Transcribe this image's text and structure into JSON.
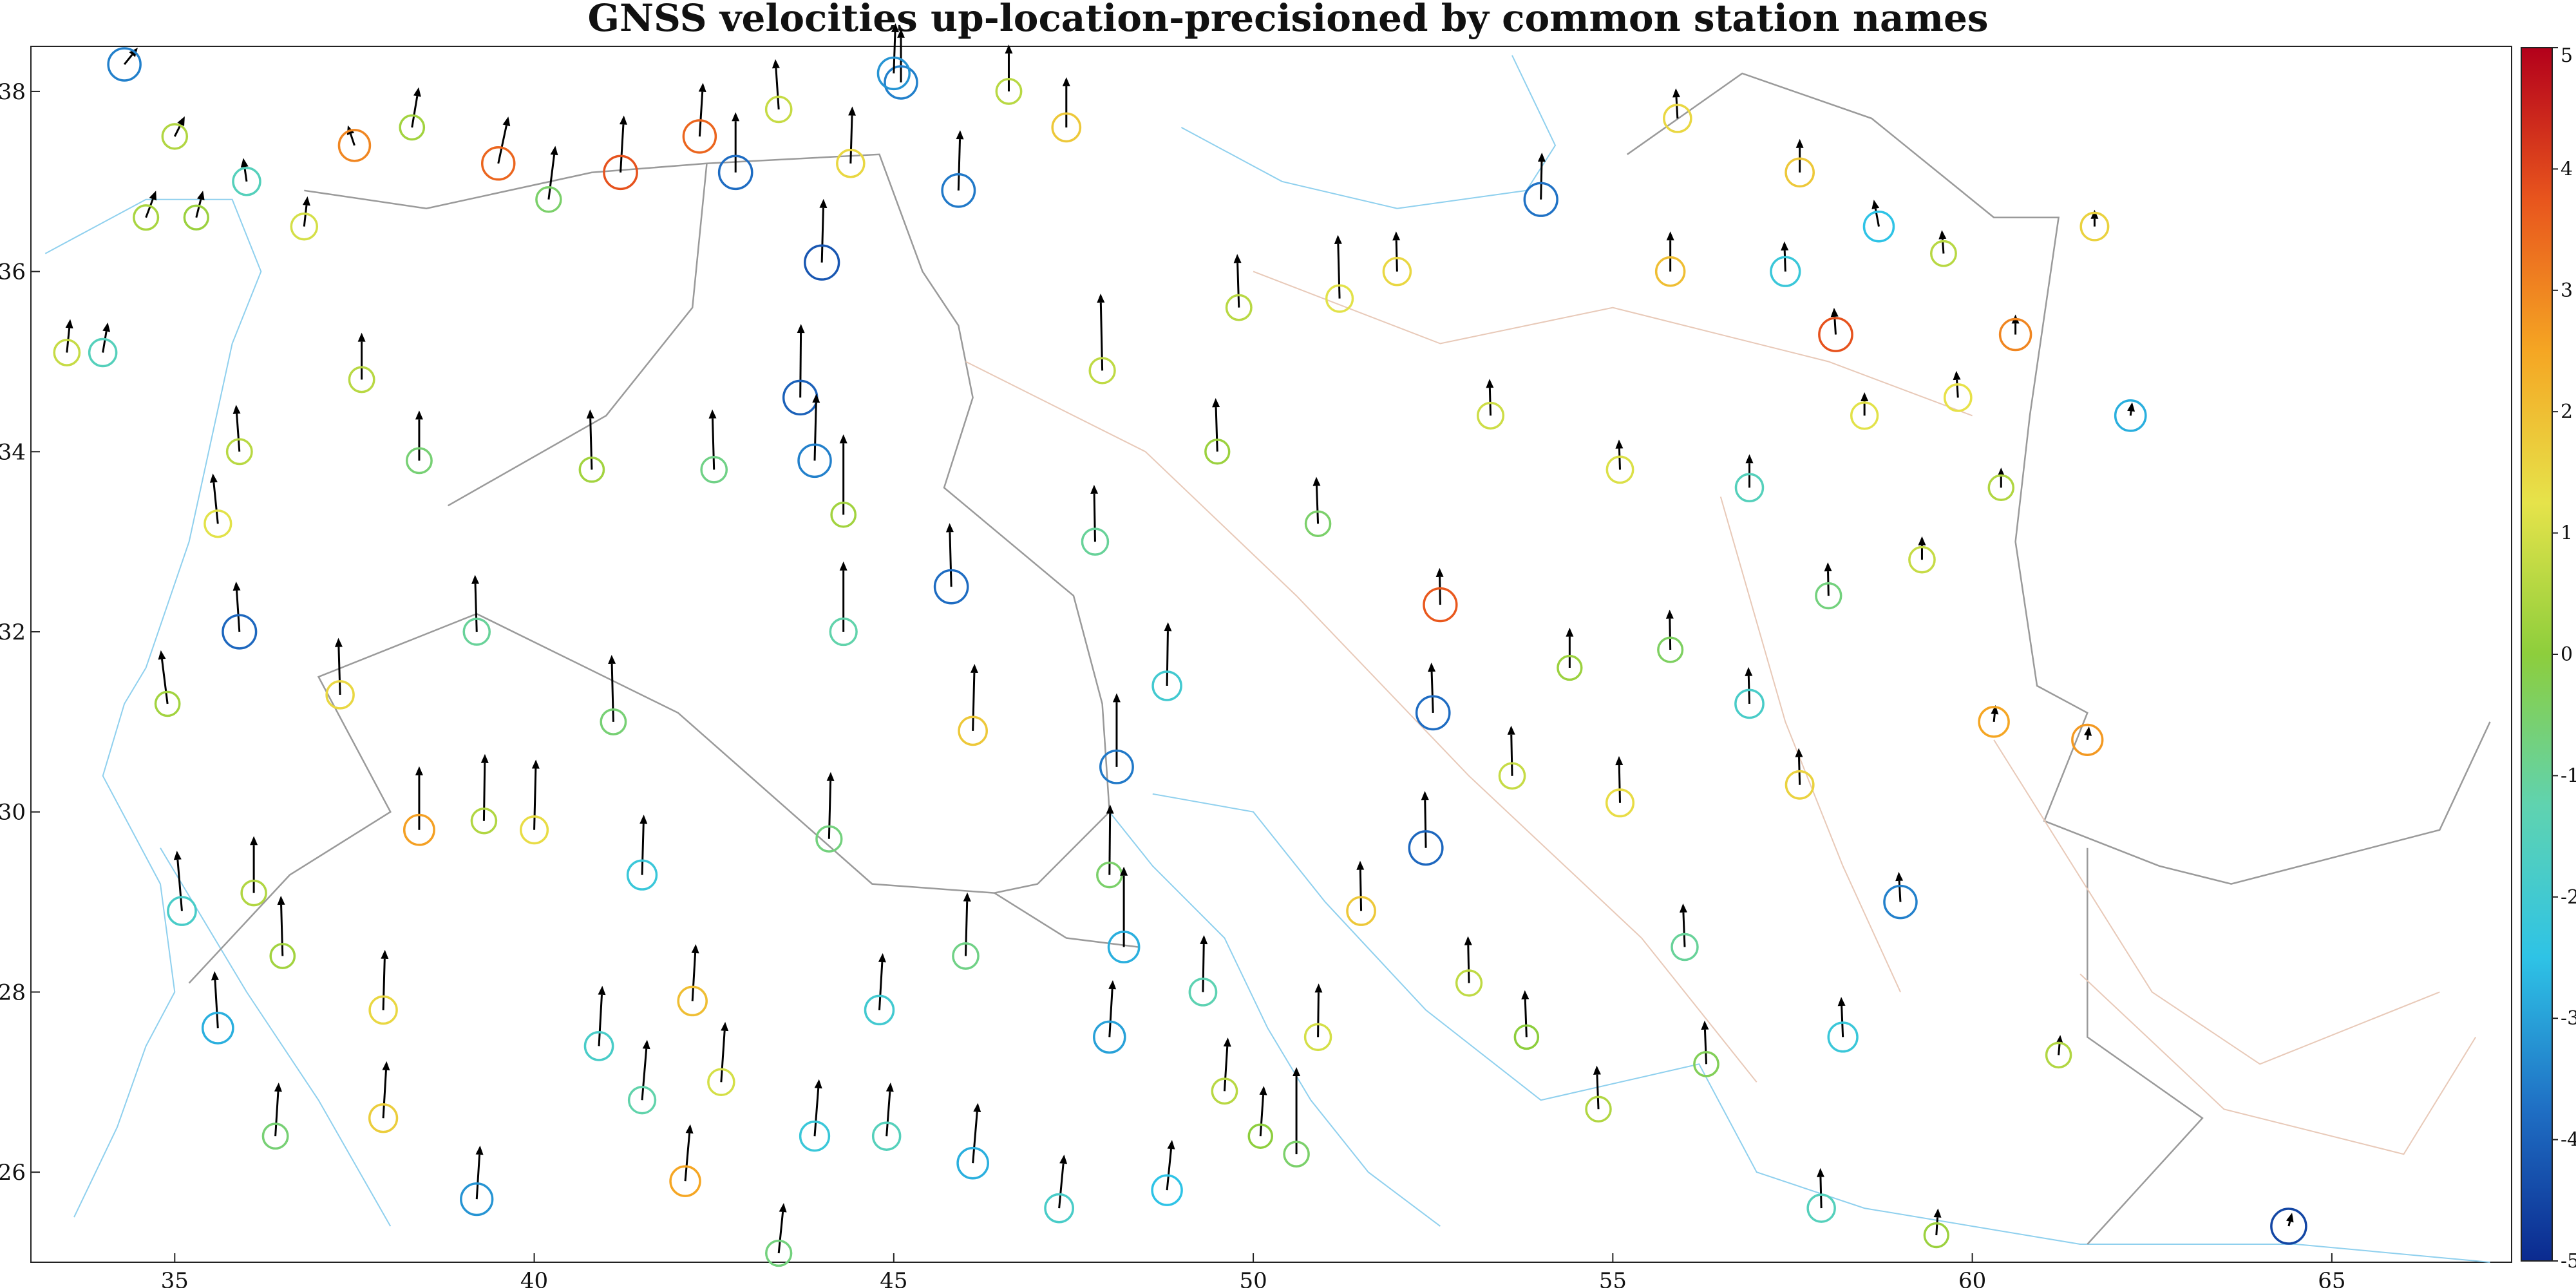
{
  "chart_data": {
    "type": "scatter",
    "title": "GNSS velocities up-location-precisioned by common station names",
    "xlabel": "",
    "ylabel": "",
    "xlim": [
      33.0,
      67.5
    ],
    "ylim": [
      25.0,
      38.5
    ],
    "x_ticks": [
      "35",
      "40",
      "45",
      "50",
      "55",
      "60",
      "65"
    ],
    "y_ticks": [
      "26",
      "28",
      "30",
      "32",
      "34",
      "36",
      "38"
    ],
    "grid": false,
    "legend": "none",
    "colorbar": {
      "position": "right",
      "limits": [
        -5,
        5
      ],
      "ticks": [
        "5",
        "4",
        "3",
        "2",
        "1",
        "0",
        "-1",
        "-2",
        "-3",
        "-4",
        "-5"
      ],
      "colormap": [
        "#0b2a8f",
        "#1f6fc4",
        "#2ec3e6",
        "#5fd3b0",
        "#8dce3c",
        "#e6e34a",
        "#f5a623",
        "#e8551d",
        "#b3001b"
      ]
    },
    "colors": {
      "arrow": "#000000",
      "coast": "#8fd0ee",
      "border": "#9a9a9a",
      "fault": "#e8c9b8"
    },
    "stations": [
      {
        "lon": 34.3,
        "lat": 38.3,
        "ve": 4.0,
        "vn": 5.0,
        "vu": -3.5
      },
      {
        "lon": 35.0,
        "lat": 37.5,
        "ve": 3.0,
        "vn": 6.0,
        "vu": 0.5
      },
      {
        "lon": 35.3,
        "lat": 36.6,
        "ve": 2.0,
        "vn": 8.0,
        "vu": 0.2
      },
      {
        "lon": 36.0,
        "lat": 37.0,
        "ve": -1.0,
        "vn": 7.0,
        "vu": -1.5
      },
      {
        "lon": 36.8,
        "lat": 36.5,
        "ve": 1.0,
        "vn": 9.0,
        "vu": 1.0
      },
      {
        "lon": 37.5,
        "lat": 37.4,
        "ve": -2.0,
        "vn": 6.0,
        "vu": 3.0
      },
      {
        "lon": 38.3,
        "lat": 37.6,
        "ve": 2.0,
        "vn": 12.0,
        "vu": 0.3
      },
      {
        "lon": 39.5,
        "lat": 37.2,
        "ve": 3.0,
        "vn": 14.0,
        "vu": 3.5
      },
      {
        "lon": 40.2,
        "lat": 36.8,
        "ve": 2.0,
        "vn": 16.0,
        "vu": -0.5
      },
      {
        "lon": 41.2,
        "lat": 37.1,
        "ve": 1.0,
        "vn": 17.0,
        "vu": 3.8
      },
      {
        "lon": 42.3,
        "lat": 37.5,
        "ve": 1.0,
        "vn": 16.0,
        "vu": 3.5
      },
      {
        "lon": 42.8,
        "lat": 37.1,
        "ve": 0.0,
        "vn": 18.0,
        "vu": -3.8
      },
      {
        "lon": 43.4,
        "lat": 37.8,
        "ve": -1.0,
        "vn": 15.0,
        "vu": 0.8
      },
      {
        "lon": 44.4,
        "lat": 37.2,
        "ve": 0.5,
        "vn": 17.0,
        "vu": 1.5
      },
      {
        "lon": 45.1,
        "lat": 38.1,
        "ve": 0.0,
        "vn": 16.0,
        "vu": -3.5
      },
      {
        "lon": 45.9,
        "lat": 36.9,
        "ve": 0.5,
        "vn": 18.0,
        "vu": -3.6
      },
      {
        "lon": 46.6,
        "lat": 38.0,
        "ve": 0.0,
        "vn": 14.0,
        "vu": 0.6
      },
      {
        "lon": 47.4,
        "lat": 37.6,
        "ve": 0.0,
        "vn": 15.0,
        "vu": 1.8
      },
      {
        "lon": 44.0,
        "lat": 36.1,
        "ve": 0.5,
        "vn": 19.0,
        "vu": -4.2
      },
      {
        "lon": 43.7,
        "lat": 34.6,
        "ve": 0.2,
        "vn": 22.0,
        "vu": -4.0
      },
      {
        "lon": 43.9,
        "lat": 33.9,
        "ve": 0.5,
        "vn": 20.0,
        "vu": -3.5
      },
      {
        "lon": 44.3,
        "lat": 33.3,
        "ve": 0.0,
        "vn": 24.0,
        "vu": 0.3
      },
      {
        "lon": 42.5,
        "lat": 33.8,
        "ve": -0.5,
        "vn": 18.0,
        "vu": -0.8
      },
      {
        "lon": 45.8,
        "lat": 32.5,
        "ve": -0.5,
        "vn": 19.0,
        "vu": -3.8
      },
      {
        "lon": 44.3,
        "lat": 32.0,
        "ve": 0.0,
        "vn": 21.0,
        "vu": -1.2
      },
      {
        "lon": 47.9,
        "lat": 34.9,
        "ve": -0.5,
        "vn": 23.0,
        "vu": 0.7
      },
      {
        "lon": 51.2,
        "lat": 35.7,
        "ve": -0.5,
        "vn": 19.0,
        "vu": 1.2
      },
      {
        "lon": 54.0,
        "lat": 36.8,
        "ve": 0.3,
        "vn": 14.0,
        "vu": -3.7
      },
      {
        "lon": 55.9,
        "lat": 37.7,
        "ve": -0.5,
        "vn": 9.0,
        "vu": 1.5
      },
      {
        "lon": 57.6,
        "lat": 37.1,
        "ve": 0.0,
        "vn": 10.0,
        "vu": 1.8
      },
      {
        "lon": 58.7,
        "lat": 36.5,
        "ve": -1.5,
        "vn": 8.0,
        "vu": -2.5
      },
      {
        "lon": 59.6,
        "lat": 36.2,
        "ve": -0.5,
        "vn": 7.0,
        "vu": 0.6
      },
      {
        "lon": 60.6,
        "lat": 35.3,
        "ve": 0.0,
        "vn": 6.0,
        "vu": 3.0
      },
      {
        "lon": 58.1,
        "lat": 35.3,
        "ve": -0.5,
        "vn": 8.0,
        "vu": 3.8
      },
      {
        "lon": 58.5,
        "lat": 34.4,
        "ve": 0.0,
        "vn": 7.0,
        "vu": 1.2
      },
      {
        "lon": 59.8,
        "lat": 34.6,
        "ve": -0.5,
        "vn": 8.0,
        "vu": 1.3
      },
      {
        "lon": 55.1,
        "lat": 33.8,
        "ve": -0.3,
        "vn": 9.0,
        "vu": 1.1
      },
      {
        "lon": 56.9,
        "lat": 33.6,
        "ve": 0.0,
        "vn": 10.0,
        "vu": -1.5
      },
      {
        "lon": 52.6,
        "lat": 32.3,
        "ve": -0.2,
        "vn": 11.0,
        "vu": 3.7
      },
      {
        "lon": 54.4,
        "lat": 31.6,
        "ve": 0.0,
        "vn": 12.0,
        "vu": 0.2
      },
      {
        "lon": 56.9,
        "lat": 31.2,
        "ve": -0.3,
        "vn": 11.0,
        "vu": -1.8
      },
      {
        "lon": 52.5,
        "lat": 31.1,
        "ve": -0.5,
        "vn": 15.0,
        "vu": -3.8
      },
      {
        "lon": 48.1,
        "lat": 30.5,
        "ve": 0.0,
        "vn": 22.0,
        "vu": -3.6
      },
      {
        "lon": 48.0,
        "lat": 29.3,
        "ve": 0.2,
        "vn": 21.0,
        "vu": -0.5
      },
      {
        "lon": 48.2,
        "lat": 28.5,
        "ve": 0.0,
        "vn": 24.0,
        "vu": -2.8
      },
      {
        "lon": 50.6,
        "lat": 26.2,
        "ve": 0.0,
        "vn": 26.0,
        "vu": -0.5
      },
      {
        "lon": 52.4,
        "lat": 29.6,
        "ve": -0.3,
        "vn": 17.0,
        "vu": -3.9
      },
      {
        "lon": 55.1,
        "lat": 30.1,
        "ve": -0.3,
        "vn": 14.0,
        "vu": 1.4
      },
      {
        "lon": 57.9,
        "lat": 25.6,
        "ve": -0.3,
        "vn": 12.0,
        "vu": -1.5
      },
      {
        "lon": 60.3,
        "lat": 31.0,
        "ve": 0.5,
        "vn": 5.0,
        "vu": 2.5
      },
      {
        "lon": 61.6,
        "lat": 30.8,
        "ve": 0.5,
        "vn": 4.0,
        "vu": 2.7
      },
      {
        "lon": 61.2,
        "lat": 27.3,
        "ve": 0.5,
        "vn": 6.0,
        "vu": 0.5
      },
      {
        "lon": 64.4,
        "lat": 25.4,
        "ve": 1.0,
        "vn": 4.0,
        "vu": -4.5
      },
      {
        "lon": 38.4,
        "lat": 29.8,
        "ve": 0.0,
        "vn": 19.0,
        "vu": 2.6
      },
      {
        "lon": 39.3,
        "lat": 29.9,
        "ve": 0.3,
        "vn": 20.0,
        "vu": 0.5
      },
      {
        "lon": 40.0,
        "lat": 29.8,
        "ve": 0.5,
        "vn": 21.0,
        "vu": 1.4
      },
      {
        "lon": 41.1,
        "lat": 31.0,
        "ve": -0.5,
        "vn": 20.0,
        "vu": -0.6
      },
      {
        "lon": 37.9,
        "lat": 27.8,
        "ve": 0.5,
        "vn": 18.0,
        "vu": 1.5
      },
      {
        "lon": 37.9,
        "lat": 26.6,
        "ve": 1.0,
        "vn": 17.0,
        "vu": 1.7
      },
      {
        "lon": 39.2,
        "lat": 25.7,
        "ve": 1.0,
        "vn": 16.0,
        "vu": -3.2
      },
      {
        "lon": 41.5,
        "lat": 26.8,
        "ve": 1.5,
        "vn": 18.0,
        "vu": -1.2
      },
      {
        "lon": 42.1,
        "lat": 25.9,
        "ve": 1.5,
        "vn": 17.0,
        "vu": 2.5
      },
      {
        "lon": 43.4,
        "lat": 25.1,
        "ve": 1.5,
        "vn": 15.0,
        "vu": -0.7
      },
      {
        "lon": 44.8,
        "lat": 27.8,
        "ve": 1.0,
        "vn": 17.0,
        "vu": -2.0
      },
      {
        "lon": 46.1,
        "lat": 26.1,
        "ve": 1.5,
        "vn": 18.0,
        "vu": -2.8
      },
      {
        "lon": 47.3,
        "lat": 25.6,
        "ve": 1.5,
        "vn": 16.0,
        "vu": -1.8
      },
      {
        "lon": 48.8,
        "lat": 25.8,
        "ve": 1.5,
        "vn": 15.0,
        "vu": -2.5
      },
      {
        "lon": 36.4,
        "lat": 26.4,
        "ve": 1.0,
        "vn": 16.0,
        "vu": -0.6
      },
      {
        "lon": 36.5,
        "lat": 28.4,
        "ve": -0.5,
        "vn": 18.0,
        "vu": 0.3
      },
      {
        "lon": 35.6,
        "lat": 27.6,
        "ve": -1.0,
        "vn": 17.0,
        "vu": -2.8
      },
      {
        "lon": 35.1,
        "lat": 28.9,
        "ve": -1.5,
        "vn": 18.0,
        "vu": -1.8
      },
      {
        "lon": 36.1,
        "lat": 29.1,
        "ve": 0.0,
        "vn": 17.0,
        "vu": 0.5
      },
      {
        "lon": 34.9,
        "lat": 31.2,
        "ve": -2.0,
        "vn": 16.0,
        "vu": 0.3
      },
      {
        "lon": 35.9,
        "lat": 32.0,
        "ve": -1.0,
        "vn": 15.0,
        "vu": -3.9
      },
      {
        "lon": 33.5,
        "lat": 35.1,
        "ve": 1.0,
        "vn": 10.0,
        "vu": 0.8
      },
      {
        "lon": 34.0,
        "lat": 35.1,
        "ve": 1.5,
        "vn": 9.0,
        "vu": -1.5
      },
      {
        "lon": 34.6,
        "lat": 36.6,
        "ve": 3.0,
        "vn": 8.0,
        "vu": 0.4
      },
      {
        "lon": 35.6,
        "lat": 33.2,
        "ve": -1.5,
        "vn": 15.0,
        "vu": 1.2
      },
      {
        "lon": 35.9,
        "lat": 34.0,
        "ve": -1.0,
        "vn": 14.0,
        "vu": 0.6
      },
      {
        "lon": 45.0,
        "lat": 38.2,
        "ve": 0.5,
        "vn": 15.0,
        "vu": -3.2
      },
      {
        "lon": 46.0,
        "lat": 28.4,
        "ve": 0.5,
        "vn": 19.0,
        "vu": -0.8
      },
      {
        "lon": 48.0,
        "lat": 27.5,
        "ve": 1.0,
        "vn": 17.0,
        "vu": -3.0
      },
      {
        "lon": 49.6,
        "lat": 26.9,
        "ve": 1.0,
        "vn": 16.0,
        "vu": 0.6
      },
      {
        "lon": 50.1,
        "lat": 26.4,
        "ve": 1.0,
        "vn": 15.0,
        "vu": 0.0
      },
      {
        "lon": 44.9,
        "lat": 26.4,
        "ve": 1.2,
        "vn": 16.0,
        "vu": -1.5
      },
      {
        "lon": 43.9,
        "lat": 26.4,
        "ve": 1.3,
        "vn": 17.0,
        "vu": -2.2
      },
      {
        "lon": 42.6,
        "lat": 27.0,
        "ve": 1.2,
        "vn": 18.0,
        "vu": 1.0
      },
      {
        "lon": 42.2,
        "lat": 27.9,
        "ve": 1.0,
        "vn": 17.0,
        "vu": 2.0
      },
      {
        "lon": 40.9,
        "lat": 27.4,
        "ve": 1.0,
        "vn": 18.0,
        "vu": -1.8
      },
      {
        "lon": 44.1,
        "lat": 29.7,
        "ve": 0.5,
        "vn": 20.0,
        "vu": -0.7
      },
      {
        "lon": 41.5,
        "lat": 29.3,
        "ve": 0.5,
        "vn": 18.0,
        "vu": -2.2
      },
      {
        "lon": 46.1,
        "lat": 30.9,
        "ve": 0.5,
        "vn": 20.0,
        "vu": 1.8
      },
      {
        "lon": 48.8,
        "lat": 31.4,
        "ve": 0.3,
        "vn": 19.0,
        "vu": -2.0
      },
      {
        "lon": 51.5,
        "lat": 28.9,
        "ve": -0.3,
        "vn": 15.0,
        "vu": 1.8
      },
      {
        "lon": 56.0,
        "lat": 28.5,
        "ve": -0.5,
        "vn": 13.0,
        "vu": -1.0
      },
      {
        "lon": 58.2,
        "lat": 27.5,
        "ve": -0.5,
        "vn": 12.0,
        "vu": -2.2
      },
      {
        "lon": 59.0,
        "lat": 29.0,
        "ve": -0.5,
        "vn": 9.0,
        "vu": -3.5
      },
      {
        "lon": 60.4,
        "lat": 33.6,
        "ve": 0.0,
        "vn": 6.0,
        "vu": 0.5
      },
      {
        "lon": 59.3,
        "lat": 32.8,
        "ve": 0.0,
        "vn": 7.0,
        "vu": 0.8
      },
      {
        "lon": 55.8,
        "lat": 36.0,
        "ve": 0.0,
        "vn": 12.0,
        "vu": 2.0
      },
      {
        "lon": 61.7,
        "lat": 36.5,
        "ve": 0.0,
        "vn": 5.0,
        "vu": 1.6
      },
      {
        "lon": 62.2,
        "lat": 34.4,
        "ve": 0.5,
        "vn": 4.0,
        "vu": -2.8
      },
      {
        "lon": 59.5,
        "lat": 25.3,
        "ve": 0.5,
        "vn": 8.0,
        "vu": 0.2
      },
      {
        "lon": 53.8,
        "lat": 27.5,
        "ve": -0.5,
        "vn": 14.0,
        "vu": 0.0
      },
      {
        "lon": 54.8,
        "lat": 26.7,
        "ve": -0.5,
        "vn": 13.0,
        "vu": 0.5
      },
      {
        "lon": 56.3,
        "lat": 27.2,
        "ve": -0.5,
        "vn": 13.0,
        "vu": -0.3
      },
      {
        "lon": 53.0,
        "lat": 28.1,
        "ve": -0.3,
        "vn": 14.0,
        "vu": 0.7
      },
      {
        "lon": 50.9,
        "lat": 27.5,
        "ve": 0.2,
        "vn": 16.0,
        "vu": 1.0
      },
      {
        "lon": 49.3,
        "lat": 28.0,
        "ve": 0.3,
        "vn": 17.0,
        "vu": -1.3
      },
      {
        "lon": 53.6,
        "lat": 30.4,
        "ve": -0.3,
        "vn": 15.0,
        "vu": 0.8
      },
      {
        "lon": 55.8,
        "lat": 31.8,
        "ve": -0.2,
        "vn": 12.0,
        "vu": -0.4
      },
      {
        "lon": 57.6,
        "lat": 30.3,
        "ve": -0.3,
        "vn": 11.0,
        "vu": 1.6
      },
      {
        "lon": 58.0,
        "lat": 32.4,
        "ve": -0.2,
        "vn": 10.0,
        "vu": -0.7
      },
      {
        "lon": 53.3,
        "lat": 34.4,
        "ve": -0.3,
        "vn": 11.0,
        "vu": 0.9
      },
      {
        "lon": 50.9,
        "lat": 33.2,
        "ve": -0.5,
        "vn": 14.0,
        "vu": -0.5
      },
      {
        "lon": 49.5,
        "lat": 34.0,
        "ve": -0.5,
        "vn": 16.0,
        "vu": 0.2
      },
      {
        "lon": 47.8,
        "lat": 33.0,
        "ve": -0.3,
        "vn": 17.0,
        "vu": -1.0
      },
      {
        "lon": 49.8,
        "lat": 35.6,
        "ve": -0.5,
        "vn": 16.0,
        "vu": 0.6
      },
      {
        "lon": 52.0,
        "lat": 36.0,
        "ve": -0.3,
        "vn": 12.0,
        "vu": 1.5
      },
      {
        "lon": 57.4,
        "lat": 36.0,
        "ve": -0.3,
        "vn": 9.0,
        "vu": -2.2
      },
      {
        "lon": 40.8,
        "lat": 33.8,
        "ve": -0.5,
        "vn": 18.0,
        "vu": 0.3
      },
      {
        "lon": 39.2,
        "lat": 32.0,
        "ve": -0.5,
        "vn": 17.0,
        "vu": -1.0
      },
      {
        "lon": 37.3,
        "lat": 31.3,
        "ve": -0.5,
        "vn": 17.0,
        "vu": 1.5
      },
      {
        "lon": 37.6,
        "lat": 34.8,
        "ve": 0.0,
        "vn": 14.0,
        "vu": 0.6
      },
      {
        "lon": 38.4,
        "lat": 33.9,
        "ve": 0.0,
        "vn": 15.0,
        "vu": -0.6
      }
    ]
  }
}
